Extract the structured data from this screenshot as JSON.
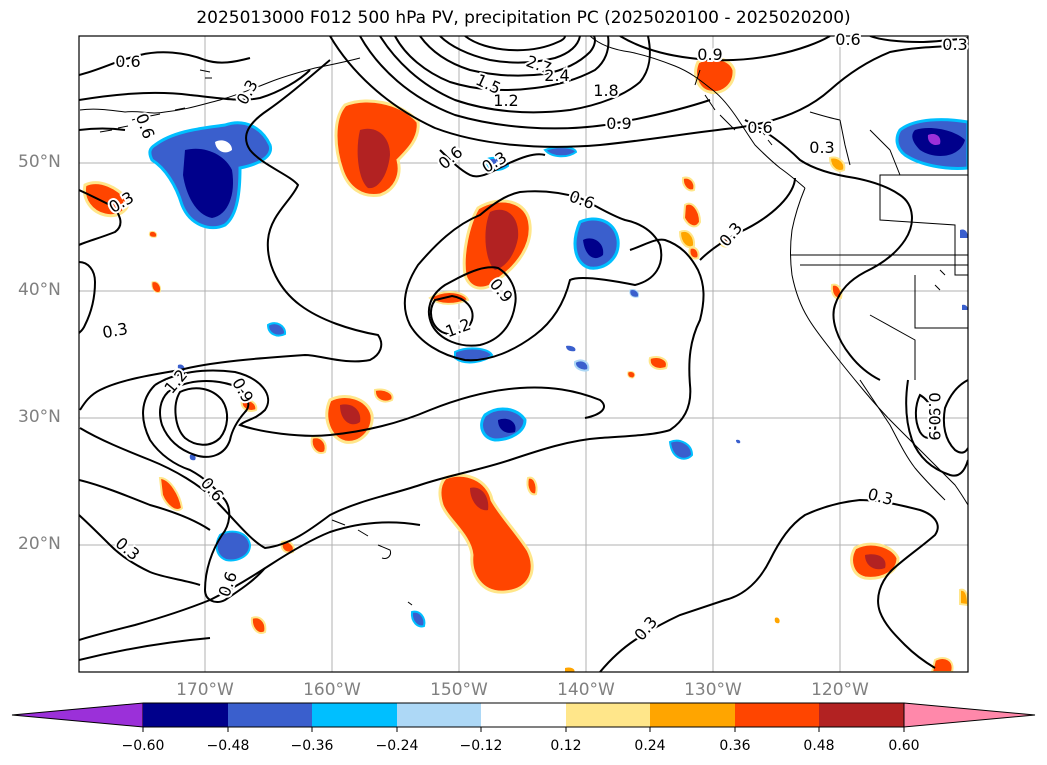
{
  "title": "2025013000 F012 500 hPa PV, precipitation PC (2025020100 - 2025020200)",
  "lat_labels": [
    "50°N",
    "40°N",
    "30°N",
    "20°N"
  ],
  "lon_labels": [
    "170°W",
    "160°W",
    "150°W",
    "140°W",
    "130°W",
    "120°W"
  ],
  "colorbar": {
    "ticks": [
      "−0.60",
      "−0.48",
      "−0.36",
      "−0.24",
      "−0.12",
      "0.12",
      "0.24",
      "0.36",
      "0.48",
      "0.60"
    ],
    "colors": [
      "#9b30d9",
      "#00008b",
      "#3a5fcd",
      "#00bfff",
      "#add8f6",
      "#ffffff",
      "#ffe68a",
      "#ffa500",
      "#ff4500",
      "#b22222",
      "#ff88aa"
    ]
  },
  "contour_labels": [
    "0.6",
    "0.3",
    "0.9",
    "2.7",
    "2.4",
    "1.8",
    "1.5",
    "1.2",
    "0.9",
    "0.6",
    "0.6",
    "0.3",
    "0.6",
    "0.3",
    "0.6",
    "0.9",
    "1.2",
    "0.3",
    "0.3",
    "1.2",
    "0.9",
    "0.6",
    "0.3",
    "0.6",
    "0.3",
    "0.3",
    "0.3",
    "0.6",
    "0.9",
    "0.9",
    "0.3"
  ]
}
